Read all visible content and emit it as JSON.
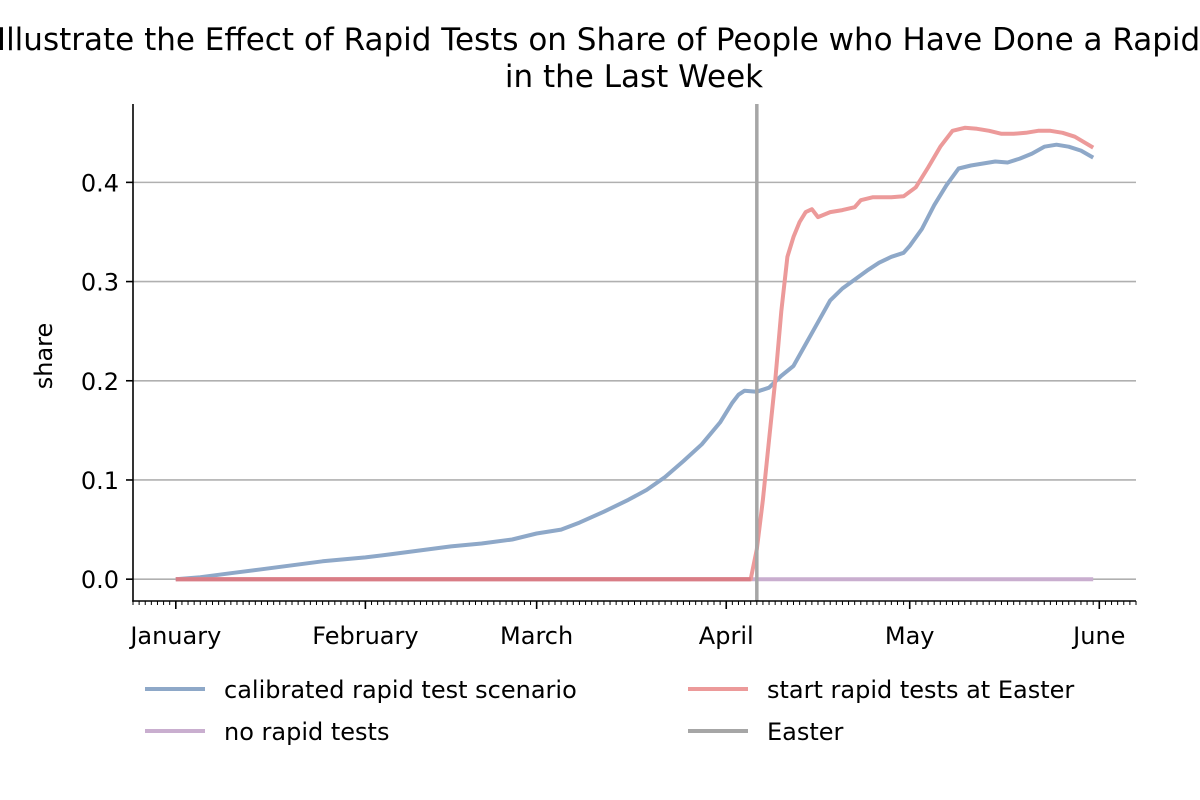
{
  "chart_data": {
    "type": "line",
    "title_line1": "Illustrate the Effect of Rapid Tests on Share of People who Have Done a Rapid Test",
    "title_line2": "in the Last Week",
    "xlabel": "",
    "ylabel": "share",
    "x_ticks": [
      {
        "label": "January",
        "date": "2021-01-01"
      },
      {
        "label": "February",
        "date": "2021-02-01"
      },
      {
        "label": "March",
        "date": "2021-03-01"
      },
      {
        "label": "April",
        "date": "2021-04-01"
      },
      {
        "label": "May",
        "date": "2021-05-01"
      },
      {
        "label": "June",
        "date": "2021-06-01"
      }
    ],
    "xlim": [
      "2020-12-25",
      "2021-06-07"
    ],
    "y_ticks": [
      "0.0",
      "0.1",
      "0.2",
      "0.3",
      "0.4"
    ],
    "ylim": [
      -0.022,
      0.479
    ],
    "grid": "y",
    "legend": "bottom",
    "vline": {
      "name": "Easter",
      "date": "2021-04-06",
      "color": "#a6a6a6"
    },
    "series": [
      {
        "name": "calibrated rapid test scenario",
        "color": "#8ea8c8",
        "points": [
          [
            "2021-01-01",
            0.0
          ],
          [
            "2021-01-05",
            0.002
          ],
          [
            "2021-01-10",
            0.006
          ],
          [
            "2021-01-15",
            0.01
          ],
          [
            "2021-01-20",
            0.014
          ],
          [
            "2021-01-25",
            0.018
          ],
          [
            "2021-02-01",
            0.022
          ],
          [
            "2021-02-05",
            0.025
          ],
          [
            "2021-02-10",
            0.029
          ],
          [
            "2021-02-15",
            0.033
          ],
          [
            "2021-02-20",
            0.036
          ],
          [
            "2021-02-25",
            0.04
          ],
          [
            "2021-03-01",
            0.046
          ],
          [
            "2021-03-05",
            0.05
          ],
          [
            "2021-03-08",
            0.057
          ],
          [
            "2021-03-12",
            0.068
          ],
          [
            "2021-03-16",
            0.08
          ],
          [
            "2021-03-19",
            0.09
          ],
          [
            "2021-03-22",
            0.103
          ],
          [
            "2021-03-25",
            0.119
          ],
          [
            "2021-03-28",
            0.136
          ],
          [
            "2021-03-31",
            0.158
          ],
          [
            "2021-04-02",
            0.178
          ],
          [
            "2021-04-03",
            0.186
          ],
          [
            "2021-04-04",
            0.19
          ],
          [
            "2021-04-06",
            0.189
          ],
          [
            "2021-04-08",
            0.193
          ],
          [
            "2021-04-10",
            0.205
          ],
          [
            "2021-04-12",
            0.215
          ],
          [
            "2021-04-14",
            0.237
          ],
          [
            "2021-04-16",
            0.259
          ],
          [
            "2021-04-18",
            0.281
          ],
          [
            "2021-04-20",
            0.293
          ],
          [
            "2021-04-22",
            0.302
          ],
          [
            "2021-04-24",
            0.311
          ],
          [
            "2021-04-26",
            0.319
          ],
          [
            "2021-04-28",
            0.325
          ],
          [
            "2021-04-30",
            0.329
          ],
          [
            "2021-05-01",
            0.336
          ],
          [
            "2021-05-03",
            0.353
          ],
          [
            "2021-05-05",
            0.377
          ],
          [
            "2021-05-07",
            0.397
          ],
          [
            "2021-05-09",
            0.414
          ],
          [
            "2021-05-11",
            0.417
          ],
          [
            "2021-05-13",
            0.419
          ],
          [
            "2021-05-15",
            0.421
          ],
          [
            "2021-05-17",
            0.42
          ],
          [
            "2021-05-19",
            0.424
          ],
          [
            "2021-05-21",
            0.429
          ],
          [
            "2021-05-23",
            0.436
          ],
          [
            "2021-05-25",
            0.438
          ],
          [
            "2021-05-27",
            0.436
          ],
          [
            "2021-05-29",
            0.432
          ],
          [
            "2021-05-31",
            0.425
          ]
        ]
      },
      {
        "name": "start rapid tests at Easter",
        "color": "#ec9a9a",
        "points": [
          [
            "2021-01-01",
            0.0
          ],
          [
            "2021-02-01",
            0.0
          ],
          [
            "2021-03-01",
            0.0
          ],
          [
            "2021-04-01",
            0.0
          ],
          [
            "2021-04-05",
            0.0
          ],
          [
            "2021-04-06",
            0.03
          ],
          [
            "2021-04-07",
            0.08
          ],
          [
            "2021-04-08",
            0.14
          ],
          [
            "2021-04-09",
            0.2
          ],
          [
            "2021-04-10",
            0.27
          ],
          [
            "2021-04-11",
            0.325
          ],
          [
            "2021-04-12",
            0.345
          ],
          [
            "2021-04-13",
            0.36
          ],
          [
            "2021-04-14",
            0.37
          ],
          [
            "2021-04-15",
            0.373
          ],
          [
            "2021-04-16",
            0.365
          ],
          [
            "2021-04-18",
            0.37
          ],
          [
            "2021-04-20",
            0.372
          ],
          [
            "2021-04-22",
            0.375
          ],
          [
            "2021-04-23",
            0.382
          ],
          [
            "2021-04-25",
            0.385
          ],
          [
            "2021-04-28",
            0.385
          ],
          [
            "2021-04-30",
            0.386
          ],
          [
            "2021-05-02",
            0.395
          ],
          [
            "2021-05-04",
            0.415
          ],
          [
            "2021-05-06",
            0.436
          ],
          [
            "2021-05-08",
            0.452
          ],
          [
            "2021-05-10",
            0.455
          ],
          [
            "2021-05-12",
            0.454
          ],
          [
            "2021-05-14",
            0.452
          ],
          [
            "2021-05-16",
            0.449
          ],
          [
            "2021-05-18",
            0.449
          ],
          [
            "2021-05-20",
            0.45
          ],
          [
            "2021-05-22",
            0.452
          ],
          [
            "2021-05-24",
            0.452
          ],
          [
            "2021-05-26",
            0.45
          ],
          [
            "2021-05-28",
            0.446
          ],
          [
            "2021-05-31",
            0.435
          ]
        ]
      },
      {
        "name": "no rapid tests",
        "color": "#c9aecf",
        "points": [
          [
            "2021-01-01",
            0.0
          ],
          [
            "2021-05-31",
            0.0
          ]
        ]
      }
    ],
    "legend_entries": [
      {
        "name": "calibrated rapid test scenario",
        "color": "#8ea8c8"
      },
      {
        "name": "start rapid tests at Easter",
        "color": "#ec9a9a"
      },
      {
        "name": "no rapid tests",
        "color": "#c9aecf"
      },
      {
        "name": "Easter",
        "color": "#a6a6a6"
      }
    ],
    "colors": {
      "grid": "#b0b0b0",
      "axis": "#000000"
    }
  }
}
